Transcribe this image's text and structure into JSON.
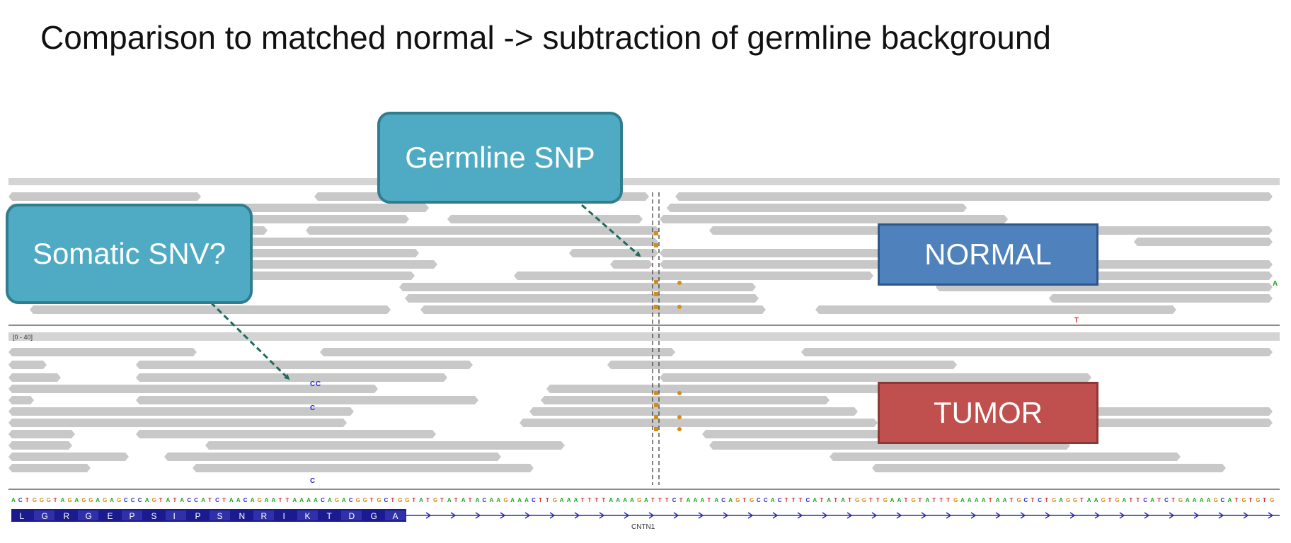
{
  "slide": {
    "title": "Comparison to matched normal -> subtraction of germline background"
  },
  "callouts": {
    "germline": "Germline SNP",
    "somatic": "Somatic SNV?"
  },
  "panels": {
    "normal": "NORMAL",
    "tumor": "TUMOR",
    "tumor_track_range": "[0 - 40]"
  },
  "reference": {
    "sequence": "ACTGGGTAGAGGAGAGCCCAGTATACCATCTAACAGAATTAAAACAGACGGTGCTGGTATGTATATACAAGAAACTTGAAATTTTAAAAGATTTCTAAATACAGTGCCACTTTCATATATGGTTGAATGTATTTGAAAATAATGCTCTGAGGTAAGTGATTCATCTGAAAAGCATGTGTG",
    "amino_acids": [
      "L",
      "G",
      "R",
      "G",
      "E",
      "P",
      "S",
      "I",
      "P",
      "S",
      "N",
      "R",
      "I",
      "K",
      "T",
      "D",
      "G",
      "A"
    ],
    "gene": "CNTN1"
  },
  "variant_calls": {
    "somatic_base": "C",
    "normal_extra_base": "T",
    "normal_edge_base": "A"
  },
  "colors": {
    "callout_fill": "#4fabc3",
    "normal_fill": "#4f81bd",
    "tumor_fill": "#c0504d",
    "read_fill": "#c8c8c8",
    "base_A": "#19a519",
    "base_C": "#2828d8",
    "base_G": "#d18f1a",
    "base_T": "#d42b2b"
  }
}
